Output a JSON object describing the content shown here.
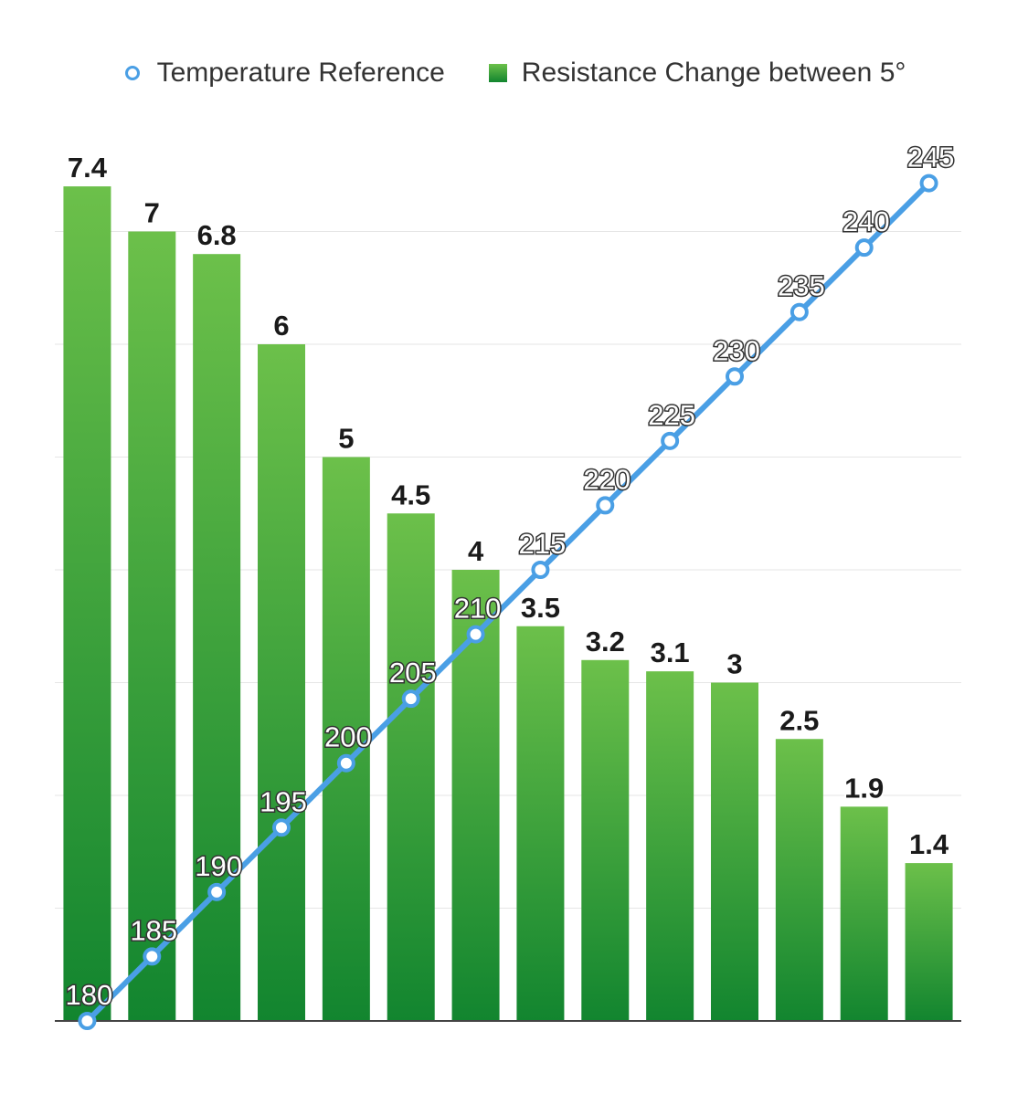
{
  "colors": {
    "bar_top": "#6cc04a",
    "bar_bottom": "#12852f",
    "line": "#4a9fe5",
    "grid": "#e6e6e6",
    "axis": "#444444"
  },
  "chart_data": {
    "type": "bar",
    "title": "",
    "xlabel": "",
    "ylabel": "",
    "legend": "top",
    "grid": true,
    "categories": [
      "",
      "",
      "",
      "",
      "",
      "",
      "",
      "",
      "",
      "",
      "",
      "",
      "",
      ""
    ],
    "series": [
      {
        "name": "Temperature Reference",
        "type": "line",
        "axis": "right",
        "values": [
          180,
          185,
          190,
          195,
          200,
          205,
          210,
          215,
          220,
          225,
          230,
          235,
          240,
          245
        ],
        "ylim": [
          180,
          250
        ]
      },
      {
        "name": "Resistance Change between 5°",
        "type": "bar",
        "axis": "left",
        "values": [
          7.4,
          7,
          6.8,
          6,
          5,
          4.5,
          4,
          3.5,
          3.2,
          3.1,
          3,
          2.5,
          1.9,
          1.4
        ],
        "ylim": [
          0,
          8
        ]
      }
    ]
  }
}
